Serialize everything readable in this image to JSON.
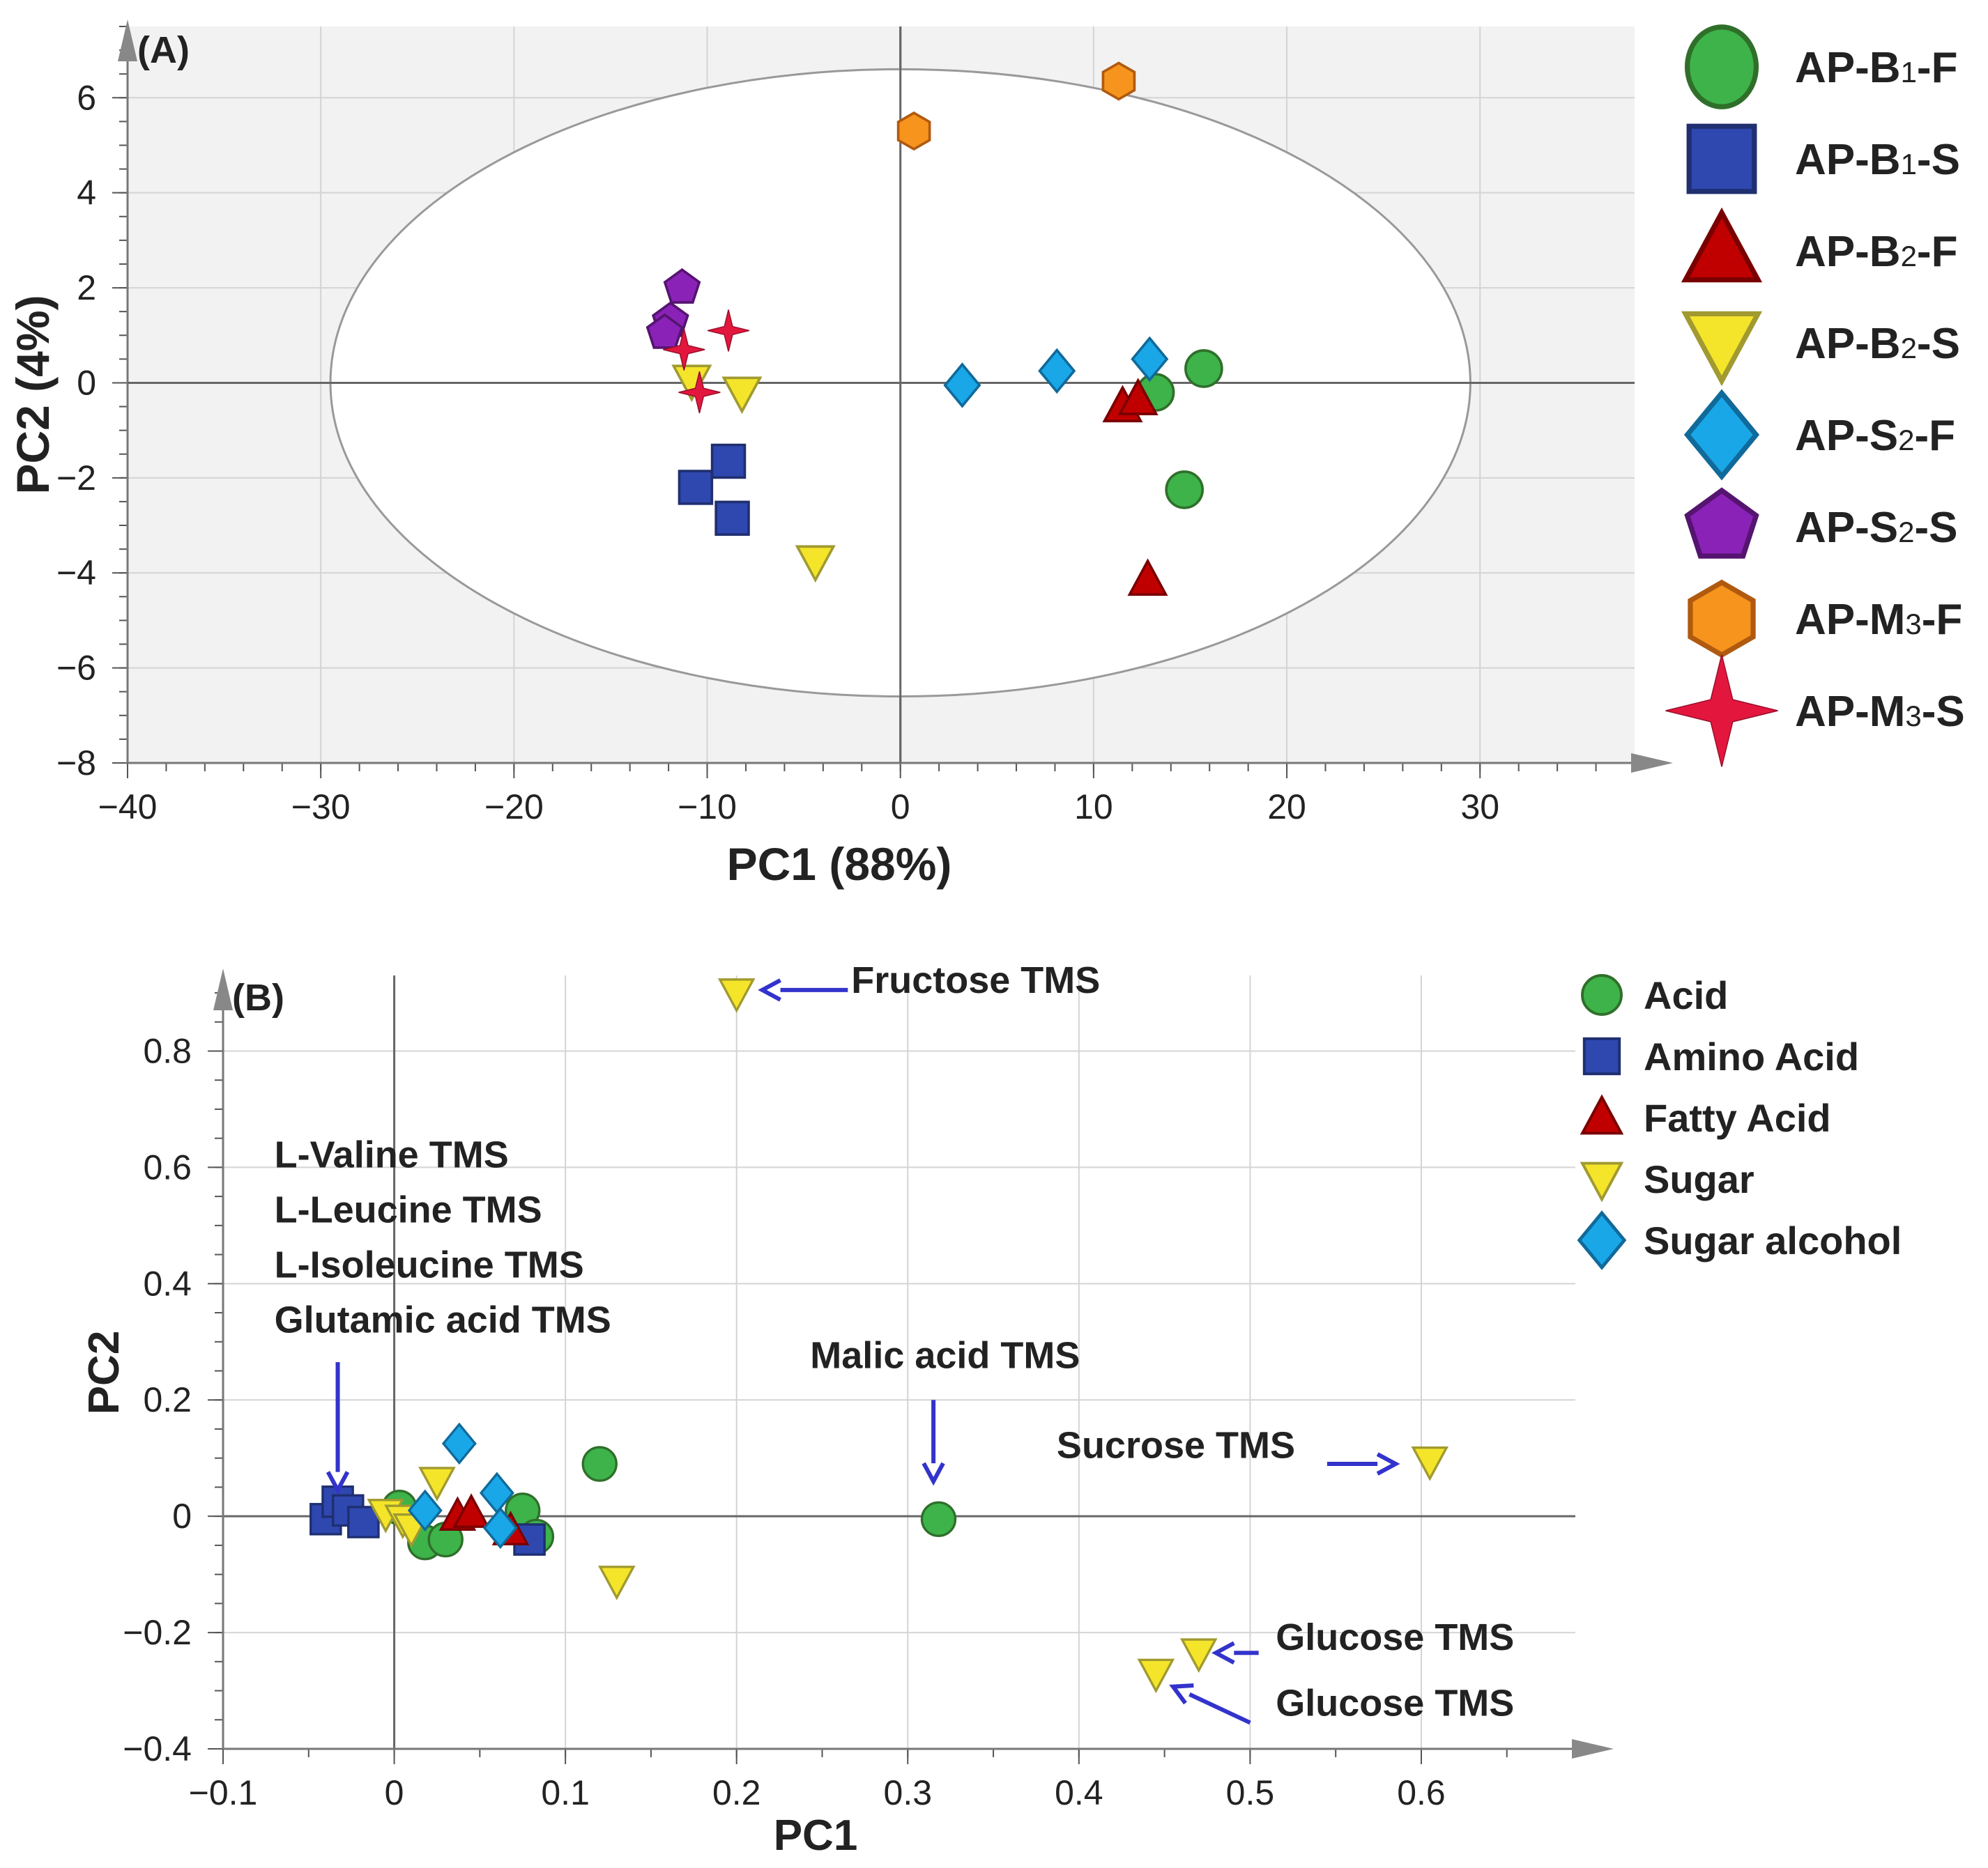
{
  "chart_data": [
    {
      "id": "A",
      "type": "scatter",
      "panel_label": "(A)",
      "xlabel": "PC1 (88%)",
      "ylabel": "PC2 (4%)",
      "xlim": [
        -40,
        38
      ],
      "ylim": [
        -8,
        7.5
      ],
      "xticks": [
        -40,
        -30,
        -20,
        -10,
        0,
        10,
        20,
        30
      ],
      "yticks": [
        -8,
        -6,
        -4,
        -2,
        0,
        2,
        4,
        6
      ],
      "grid": true,
      "confidence_ellipse": {
        "center": [
          0,
          0
        ],
        "semi_x": 29.5,
        "semi_y": 6.6
      },
      "legend_position": "right",
      "series": [
        {
          "name": "AP-B1-F",
          "name_main": "AP-B",
          "name_sub": "1",
          "name_tail": "-F",
          "marker": "circle",
          "color": "#3db34a",
          "edge": "#2f6f2a",
          "points": [
            [
              13.2,
              -0.2
            ],
            [
              15.7,
              0.3
            ],
            [
              14.7,
              -2.25
            ]
          ]
        },
        {
          "name": "AP-B1-S",
          "name_main": "AP-B",
          "name_sub": "1",
          "name_tail": "-S",
          "marker": "square",
          "color": "#2f48b0",
          "edge": "#1f2f70",
          "points": [
            [
              -8.9,
              -1.65
            ],
            [
              -10.6,
              -2.2
            ],
            [
              -8.7,
              -2.85
            ]
          ]
        },
        {
          "name": "AP-B2-F",
          "name_main": "AP-B",
          "name_sub": "2",
          "name_tail": "-F",
          "marker": "triangle",
          "color": "#c00000",
          "edge": "#7a0000",
          "points": [
            [
              11.5,
              -0.5
            ],
            [
              12.3,
              -0.35
            ],
            [
              12.8,
              -4.15
            ]
          ]
        },
        {
          "name": "AP-B2-S",
          "name_main": "AP-B",
          "name_sub": "2",
          "name_tail": "-S",
          "marker": "triangle-down",
          "color": "#f5e52a",
          "edge": "#a09a30",
          "points": [
            [
              -10.8,
              0.05
            ],
            [
              -8.2,
              -0.2
            ],
            [
              -4.4,
              -3.75
            ]
          ]
        },
        {
          "name": "AP-S2-F",
          "name_main": "AP-S",
          "name_sub": "2",
          "name_tail": "-F",
          "marker": "diamond",
          "color": "#1aa7e8",
          "edge": "#106a9a",
          "points": [
            [
              3.2,
              -0.05
            ],
            [
              8.1,
              0.25
            ],
            [
              12.9,
              0.5
            ]
          ]
        },
        {
          "name": "AP-S2-S",
          "name_main": "AP-S",
          "name_sub": "2",
          "name_tail": "-S",
          "marker": "pentagon",
          "color": "#8a22b8",
          "edge": "#551470",
          "points": [
            [
              -11.3,
              2.0
            ],
            [
              -11.9,
              1.3
            ],
            [
              -12.2,
              1.05
            ]
          ]
        },
        {
          "name": "AP-M3-F",
          "name_main": "AP-M",
          "name_sub": "3",
          "name_tail": "-F",
          "marker": "hexagon",
          "color": "#f7941d",
          "edge": "#b05a10",
          "points": [
            [
              0.7,
              5.3
            ],
            [
              11.3,
              6.35
            ]
          ]
        },
        {
          "name": "AP-M3-S",
          "name_main": "AP-M",
          "name_sub": "3",
          "name_tail": "-S",
          "marker": "star",
          "color": "#e3173e",
          "edge": "#9a0e2a",
          "points": [
            [
              -11.2,
              0.7
            ],
            [
              -8.9,
              1.1
            ],
            [
              -10.4,
              -0.2
            ]
          ]
        }
      ]
    },
    {
      "id": "B",
      "type": "scatter",
      "panel_label": "(B)",
      "xlabel": "PC1",
      "ylabel": "PC2",
      "xlim": [
        -0.1,
        0.69
      ],
      "ylim": [
        -0.4,
        0.93
      ],
      "xticks": [
        -0.1,
        0,
        0.1,
        0.2,
        0.3,
        0.4,
        0.5,
        0.6
      ],
      "xtick_labels": [
        "−0.1",
        "0",
        "0.1",
        "0.2",
        "0.3",
        "0.4",
        "0.5",
        "0.6"
      ],
      "yticks": [
        -0.4,
        -0.2,
        0,
        0.2,
        0.4,
        0.6,
        0.8
      ],
      "ytick_labels": [
        "−0.4",
        "−0.2",
        "0",
        "0.2",
        "0.4",
        "0.6",
        "0.8"
      ],
      "grid": true,
      "legend_position": "top-right",
      "series": [
        {
          "name": "Acid",
          "marker": "circle",
          "color": "#3db34a",
          "edge": "#2f6f2a",
          "points": [
            [
              0.003,
              0.015
            ],
            [
              0.018,
              -0.045
            ],
            [
              0.03,
              -0.04
            ],
            [
              0.075,
              0.01
            ],
            [
              0.083,
              -0.035
            ],
            [
              0.12,
              0.09
            ],
            [
              0.318,
              -0.005
            ]
          ]
        },
        {
          "name": "Amino Acid",
          "marker": "square",
          "color": "#2f48b0",
          "edge": "#1f2f70",
          "points": [
            [
              -0.04,
              -0.005
            ],
            [
              -0.033,
              0.025
            ],
            [
              -0.027,
              0.01
            ],
            [
              -0.018,
              -0.01
            ],
            [
              0.079,
              -0.04
            ]
          ]
        },
        {
          "name": "Fatty Acid",
          "marker": "triangle",
          "color": "#c00000",
          "edge": "#7a0000",
          "points": [
            [
              0.037,
              0.0
            ],
            [
              0.045,
              0.005
            ],
            [
              0.068,
              -0.025
            ]
          ]
        },
        {
          "name": "Sugar",
          "marker": "triangle-down",
          "color": "#f5e52a",
          "edge": "#a09a30",
          "points": [
            [
              -0.005,
              0.005
            ],
            [
              0.005,
              -0.005
            ],
            [
              0.01,
              -0.02
            ],
            [
              0.025,
              0.06
            ],
            [
              0.13,
              -0.11
            ],
            [
              0.2,
              0.9
            ],
            [
              0.445,
              -0.27
            ],
            [
              0.47,
              -0.235
            ],
            [
              0.605,
              0.095
            ]
          ]
        },
        {
          "name": "Sugar alcohol",
          "marker": "diamond",
          "color": "#1aa7e8",
          "edge": "#106a9a",
          "points": [
            [
              0.018,
              0.01
            ],
            [
              0.038,
              0.125
            ],
            [
              0.06,
              0.04
            ],
            [
              0.062,
              -0.02
            ]
          ]
        }
      ],
      "annotations": [
        {
          "lines": [
            "Fructose TMS"
          ],
          "arrow_from": [
            0.265,
            0.905
          ],
          "arrow_to": [
            0.215,
            0.905
          ],
          "text_at": [
            0.267,
            0.9
          ],
          "anchor": "start"
        },
        {
          "lines": [
            "L-Valine TMS",
            "L-Leucine TMS",
            "L-Isoleucine TMS",
            "Glutamic acid TMS"
          ],
          "arrow_from": [
            -0.033,
            0.265
          ],
          "arrow_to": [
            -0.033,
            0.045
          ],
          "text_at": [
            -0.07,
            0.6
          ],
          "anchor": "start"
        },
        {
          "lines": [
            "Malic acid TMS"
          ],
          "arrow_from": [
            0.315,
            0.2
          ],
          "arrow_to": [
            0.315,
            0.06
          ],
          "text_at": [
            0.243,
            0.255
          ],
          "anchor": "start"
        },
        {
          "lines": [
            "Sucrose TMS"
          ],
          "arrow_from": [
            0.545,
            0.09
          ],
          "arrow_to": [
            0.585,
            0.09
          ],
          "text_at": [
            0.387,
            0.1
          ],
          "anchor": "start"
        },
        {
          "lines": [
            "Glucose TMS"
          ],
          "arrow_from": [
            0.505,
            -0.235
          ],
          "arrow_to": [
            0.48,
            -0.235
          ],
          "text_at": [
            0.515,
            -0.23
          ],
          "anchor": "start"
        },
        {
          "lines": [
            "Glucose TMS"
          ],
          "arrow_from": [
            0.5,
            -0.355
          ],
          "arrow_to": [
            0.455,
            -0.293
          ],
          "text_at": [
            0.515,
            -0.343
          ],
          "anchor": "start"
        }
      ]
    }
  ]
}
